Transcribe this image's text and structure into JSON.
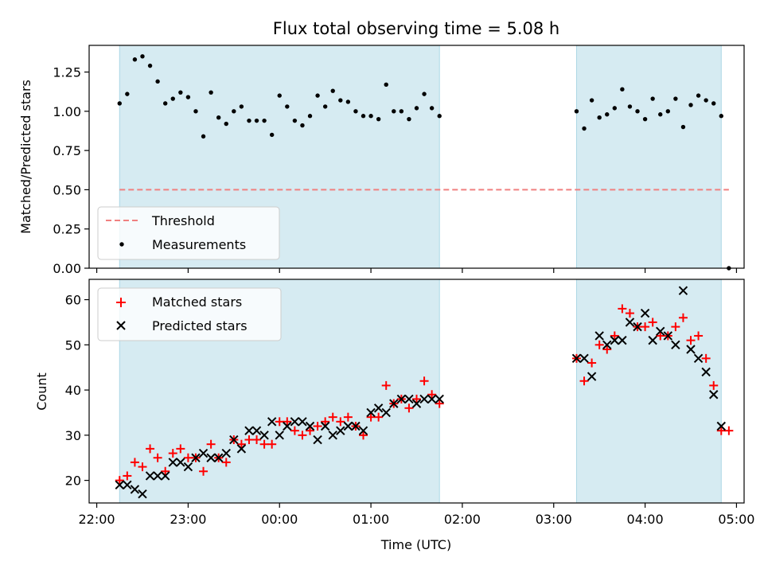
{
  "title": "Flux total observing time = 5.08 h",
  "colors": {
    "shade": "#add8e6",
    "threshold": "#f08080",
    "measurement": "#000000",
    "matched": "#ff0000",
    "predicted": "#000000"
  },
  "chart_data": [
    {
      "type": "scatter",
      "panel": "top",
      "ylabel": "Matched/Predicted stars",
      "xlabel": "",
      "ylim": [
        0,
        1.42
      ],
      "yticks": [
        0.0,
        0.25,
        0.5,
        0.75,
        1.0,
        1.25
      ],
      "ytick_labels": [
        "0.00",
        "0.25",
        "0.50",
        "0.75",
        "1.00",
        "1.25"
      ],
      "legend": {
        "placement": "lower-left",
        "entries": [
          "Threshold",
          "Measurements"
        ]
      },
      "threshold": {
        "name": "Threshold",
        "y": 0.5,
        "x_range": [
          "22:15",
          "04:55"
        ],
        "style": "dashed"
      },
      "series": [
        {
          "name": "Measurements",
          "marker": "dot",
          "points": [
            [
              "22:15",
              1.05
            ],
            [
              "22:20",
              1.11
            ],
            [
              "22:25",
              1.33
            ],
            [
              "22:30",
              1.35
            ],
            [
              "22:35",
              1.29
            ],
            [
              "22:40",
              1.19
            ],
            [
              "22:45",
              1.05
            ],
            [
              "22:50",
              1.08
            ],
            [
              "22:55",
              1.12
            ],
            [
              "23:00",
              1.09
            ],
            [
              "23:05",
              1.0
            ],
            [
              "23:10",
              0.84
            ],
            [
              "23:15",
              1.12
            ],
            [
              "23:20",
              0.96
            ],
            [
              "23:25",
              0.92
            ],
            [
              "23:30",
              1.0
            ],
            [
              "23:35",
              1.03
            ],
            [
              "23:40",
              0.94
            ],
            [
              "23:45",
              0.94
            ],
            [
              "23:50",
              0.94
            ],
            [
              "23:55",
              0.85
            ],
            [
              "00:00",
              1.1
            ],
            [
              "00:05",
              1.03
            ],
            [
              "00:10",
              0.94
            ],
            [
              "00:15",
              0.91
            ],
            [
              "00:20",
              0.97
            ],
            [
              "00:25",
              1.1
            ],
            [
              "00:30",
              1.03
            ],
            [
              "00:35",
              1.13
            ],
            [
              "00:40",
              1.07
            ],
            [
              "00:45",
              1.06
            ],
            [
              "00:50",
              1.0
            ],
            [
              "00:55",
              0.97
            ],
            [
              "01:00",
              0.97
            ],
            [
              "01:05",
              0.95
            ],
            [
              "01:10",
              1.17
            ],
            [
              "01:15",
              1.0
            ],
            [
              "01:20",
              1.0
            ],
            [
              "01:25",
              0.95
            ],
            [
              "01:30",
              1.02
            ],
            [
              "01:35",
              1.11
            ],
            [
              "01:40",
              1.02
            ],
            [
              "01:45",
              0.97
            ],
            [
              "03:15",
              1.0
            ],
            [
              "03:20",
              0.89
            ],
            [
              "03:25",
              1.07
            ],
            [
              "03:30",
              0.96
            ],
            [
              "03:35",
              0.98
            ],
            [
              "03:40",
              1.02
            ],
            [
              "03:45",
              1.14
            ],
            [
              "03:50",
              1.03
            ],
            [
              "03:55",
              1.0
            ],
            [
              "04:00",
              0.95
            ],
            [
              "04:05",
              1.08
            ],
            [
              "04:10",
              0.98
            ],
            [
              "04:15",
              1.0
            ],
            [
              "04:20",
              1.08
            ],
            [
              "04:25",
              0.9
            ],
            [
              "04:30",
              1.04
            ],
            [
              "04:35",
              1.1
            ],
            [
              "04:40",
              1.07
            ],
            [
              "04:45",
              1.05
            ],
            [
              "04:50",
              0.97
            ],
            [
              "04:55",
              0.0
            ]
          ]
        }
      ],
      "shaded_ranges": [
        [
          "22:15",
          "01:45"
        ],
        [
          "03:15",
          "04:50"
        ]
      ]
    },
    {
      "type": "scatter",
      "panel": "bottom",
      "xlabel": "Time (UTC)",
      "ylabel": "Count",
      "ylim": [
        15,
        64.5
      ],
      "yticks": [
        20,
        30,
        40,
        50,
        60
      ],
      "ytick_labels": [
        "20",
        "30",
        "40",
        "50",
        "60"
      ],
      "xlim": [
        "21:55",
        "05:05"
      ],
      "xticks": [
        "22:00",
        "23:00",
        "00:00",
        "01:00",
        "02:00",
        "03:00",
        "04:00",
        "05:00"
      ],
      "xtick_labels": [
        "22:00",
        "23:00",
        "00:00",
        "01:00",
        "02:00",
        "03:00",
        "04:00",
        "05:00"
      ],
      "legend": {
        "placement": "upper-left",
        "entries": [
          "Matched stars",
          "Predicted stars"
        ]
      },
      "series": [
        {
          "name": "Matched stars",
          "marker": "plus",
          "points": [
            [
              "22:15",
              20
            ],
            [
              "22:20",
              21
            ],
            [
              "22:25",
              24
            ],
            [
              "22:30",
              23
            ],
            [
              "22:35",
              27
            ],
            [
              "22:40",
              25
            ],
            [
              "22:45",
              22
            ],
            [
              "22:50",
              26
            ],
            [
              "22:55",
              27
            ],
            [
              "23:00",
              25
            ],
            [
              "23:05",
              25
            ],
            [
              "23:10",
              22
            ],
            [
              "23:15",
              28
            ],
            [
              "23:20",
              25
            ],
            [
              "23:25",
              24
            ],
            [
              "23:30",
              29
            ],
            [
              "23:35",
              28
            ],
            [
              "23:40",
              29
            ],
            [
              "23:45",
              29
            ],
            [
              "23:50",
              28
            ],
            [
              "23:55",
              28
            ],
            [
              "00:00",
              33
            ],
            [
              "00:05",
              33
            ],
            [
              "00:10",
              31
            ],
            [
              "00:15",
              30
            ],
            [
              "00:20",
              31
            ],
            [
              "00:25",
              32
            ],
            [
              "00:30",
              33
            ],
            [
              "00:35",
              34
            ],
            [
              "00:40",
              33
            ],
            [
              "00:45",
              34
            ],
            [
              "00:50",
              32
            ],
            [
              "00:55",
              30
            ],
            [
              "01:00",
              34
            ],
            [
              "01:05",
              34
            ],
            [
              "01:10",
              41
            ],
            [
              "01:15",
              37
            ],
            [
              "01:20",
              38
            ],
            [
              "01:25",
              36
            ],
            [
              "01:30",
              38
            ],
            [
              "01:35",
              42
            ],
            [
              "01:40",
              39
            ],
            [
              "01:45",
              37
            ],
            [
              "03:15",
              47
            ],
            [
              "03:20",
              42
            ],
            [
              "03:25",
              46
            ],
            [
              "03:30",
              50
            ],
            [
              "03:35",
              49
            ],
            [
              "03:40",
              52
            ],
            [
              "03:45",
              58
            ],
            [
              "03:50",
              57
            ],
            [
              "03:55",
              54
            ],
            [
              "04:00",
              54
            ],
            [
              "04:05",
              55
            ],
            [
              "04:10",
              52
            ],
            [
              "04:15",
              52
            ],
            [
              "04:20",
              54
            ],
            [
              "04:25",
              56
            ],
            [
              "04:30",
              51
            ],
            [
              "04:35",
              52
            ],
            [
              "04:40",
              47
            ],
            [
              "04:45",
              41
            ],
            [
              "04:50",
              31
            ],
            [
              "04:55",
              31
            ]
          ]
        },
        {
          "name": "Predicted stars",
          "marker": "x",
          "points": [
            [
              "22:15",
              19
            ],
            [
              "22:20",
              19
            ],
            [
              "22:25",
              18
            ],
            [
              "22:30",
              17
            ],
            [
              "22:35",
              21
            ],
            [
              "22:40",
              21
            ],
            [
              "22:45",
              21
            ],
            [
              "22:50",
              24
            ],
            [
              "22:55",
              24
            ],
            [
              "23:00",
              23
            ],
            [
              "23:05",
              25
            ],
            [
              "23:10",
              26
            ],
            [
              "23:15",
              25
            ],
            [
              "23:20",
              25
            ],
            [
              "23:25",
              26
            ],
            [
              "23:30",
              29
            ],
            [
              "23:35",
              27
            ],
            [
              "23:40",
              31
            ],
            [
              "23:45",
              31
            ],
            [
              "23:50",
              30
            ],
            [
              "23:55",
              33
            ],
            [
              "00:00",
              30
            ],
            [
              "00:05",
              32
            ],
            [
              "00:10",
              33
            ],
            [
              "00:15",
              33
            ],
            [
              "00:20",
              32
            ],
            [
              "00:25",
              29
            ],
            [
              "00:30",
              32
            ],
            [
              "00:35",
              30
            ],
            [
              "00:40",
              31
            ],
            [
              "00:45",
              32
            ],
            [
              "00:50",
              32
            ],
            [
              "00:55",
              31
            ],
            [
              "01:00",
              35
            ],
            [
              "01:05",
              36
            ],
            [
              "01:10",
              35
            ],
            [
              "01:15",
              37
            ],
            [
              "01:20",
              38
            ],
            [
              "01:25",
              38
            ],
            [
              "01:30",
              37
            ],
            [
              "01:35",
              38
            ],
            [
              "01:40",
              38
            ],
            [
              "01:45",
              38
            ],
            [
              "03:15",
              47
            ],
            [
              "03:20",
              47
            ],
            [
              "03:25",
              43
            ],
            [
              "03:30",
              52
            ],
            [
              "03:35",
              50
            ],
            [
              "03:40",
              51
            ],
            [
              "03:45",
              51
            ],
            [
              "03:50",
              55
            ],
            [
              "03:55",
              54
            ],
            [
              "04:00",
              57
            ],
            [
              "04:05",
              51
            ],
            [
              "04:10",
              53
            ],
            [
              "04:15",
              52
            ],
            [
              "04:20",
              50
            ],
            [
              "04:25",
              62
            ],
            [
              "04:30",
              49
            ],
            [
              "04:35",
              47
            ],
            [
              "04:40",
              44
            ],
            [
              "04:45",
              39
            ],
            [
              "04:50",
              32
            ]
          ]
        }
      ],
      "shaded_ranges": [
        [
          "22:15",
          "01:45"
        ],
        [
          "03:15",
          "04:50"
        ]
      ]
    }
  ]
}
